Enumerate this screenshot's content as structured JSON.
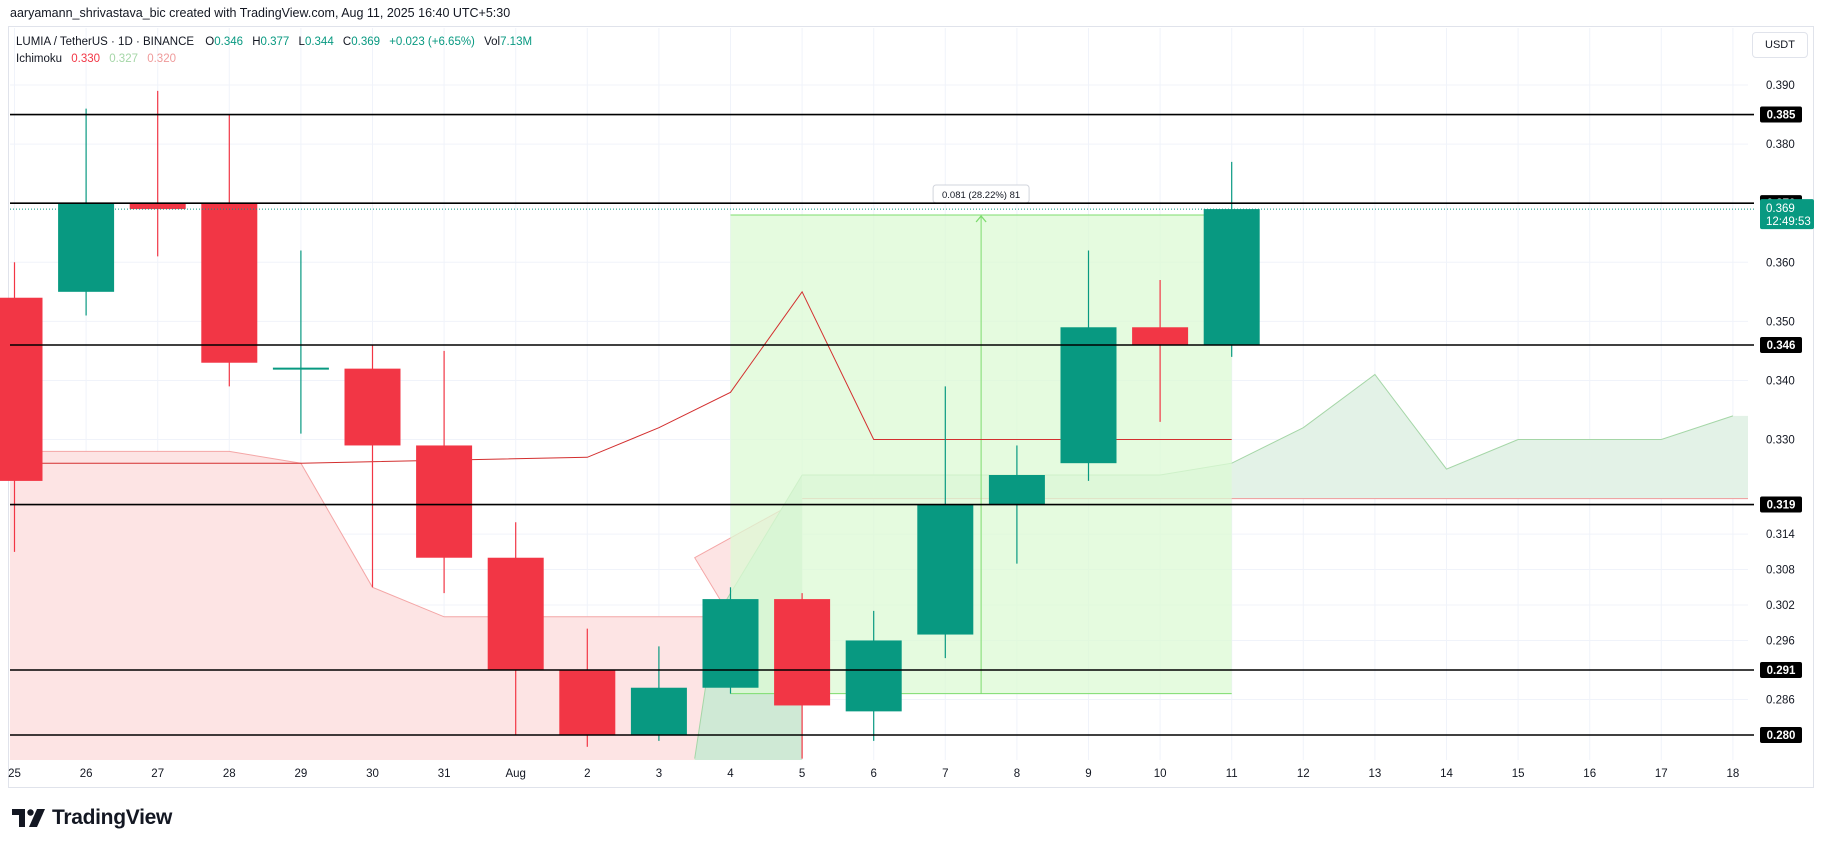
{
  "header": {
    "credit": "aaryamann_shrivastava_bic created with TradingView.com, Aug 11, 2025 16:40 UTC+5:30"
  },
  "legend": {
    "symbol": "LUMIA / TetherUS · 1D · BINANCE",
    "open_label": "O",
    "open": "0.346",
    "high_label": "H",
    "high": "0.377",
    "low_label": "L",
    "low": "0.344",
    "close_label": "C",
    "close": "0.369",
    "change": "+0.023 (+6.65%)",
    "vol_label": "Vol",
    "vol": "7.13M",
    "indicator_name": "Ichimoku",
    "indicator_values": [
      "0.330",
      "0.327",
      "0.320"
    ]
  },
  "currency": "USDT",
  "brand": {
    "name": "TradingView"
  },
  "colors": {
    "up": "#089981",
    "down": "#f23645",
    "level_line": "#000000",
    "measure_fill": "#dcfad4",
    "measure_stroke": "#7ddc6e",
    "cloud_red": "#fde4e4",
    "cloud_green": "#e3f2e7",
    "baseline": "#e57373"
  },
  "chart_data": {
    "type": "candlestick",
    "symbol": "LUMIA / TetherUS",
    "interval": "1D",
    "exchange": "BINANCE",
    "currency": "USDT",
    "x_labels": [
      "25",
      "26",
      "27",
      "28",
      "29",
      "30",
      "31",
      "Aug",
      "2",
      "3",
      "4",
      "5",
      "6",
      "7",
      "8",
      "9",
      "10",
      "11",
      "12",
      "13",
      "14",
      "15",
      "16",
      "17",
      "18"
    ],
    "y_ticks": [
      "0.390",
      "0.380",
      "0.370",
      "0.360",
      "0.350",
      "0.340",
      "0.330",
      "0.314",
      "0.308",
      "0.302",
      "0.296",
      "0.286"
    ],
    "candles": [
      {
        "d": "25",
        "o": 0.354,
        "h": 0.36,
        "l": 0.311,
        "c": 0.323
      },
      {
        "d": "26",
        "o": 0.355,
        "h": 0.386,
        "l": 0.351,
        "c": 0.37
      },
      {
        "d": "27",
        "o": 0.37,
        "h": 0.389,
        "l": 0.361,
        "c": 0.369
      },
      {
        "d": "28",
        "o": 0.37,
        "h": 0.385,
        "l": 0.339,
        "c": 0.343
      },
      {
        "d": "29",
        "o": 0.342,
        "h": 0.362,
        "l": 0.331,
        "c": 0.342
      },
      {
        "d": "30",
        "o": 0.342,
        "h": 0.346,
        "l": 0.305,
        "c": 0.329
      },
      {
        "d": "31",
        "o": 0.329,
        "h": 0.345,
        "l": 0.304,
        "c": 0.31
      },
      {
        "d": "Aug",
        "o": 0.31,
        "h": 0.316,
        "l": 0.28,
        "c": 0.291
      },
      {
        "d": "2",
        "o": 0.291,
        "h": 0.298,
        "l": 0.278,
        "c": 0.28
      },
      {
        "d": "3",
        "o": 0.28,
        "h": 0.295,
        "l": 0.279,
        "c": 0.288
      },
      {
        "d": "4",
        "o": 0.288,
        "h": 0.305,
        "l": 0.287,
        "c": 0.303
      },
      {
        "d": "5",
        "o": 0.303,
        "h": 0.304,
        "l": 0.276,
        "c": 0.285
      },
      {
        "d": "6",
        "o": 0.284,
        "h": 0.301,
        "l": 0.279,
        "c": 0.296
      },
      {
        "d": "7",
        "o": 0.297,
        "h": 0.339,
        "l": 0.293,
        "c": 0.319
      },
      {
        "d": "8",
        "o": 0.319,
        "h": 0.329,
        "l": 0.309,
        "c": 0.324
      },
      {
        "d": "9",
        "o": 0.326,
        "h": 0.362,
        "l": 0.323,
        "c": 0.349
      },
      {
        "d": "10",
        "o": 0.349,
        "h": 0.357,
        "l": 0.333,
        "c": 0.346
      },
      {
        "d": "11",
        "o": 0.346,
        "h": 0.377,
        "l": 0.344,
        "c": 0.369
      }
    ],
    "horizontal_levels": [
      "0.385",
      "0.370",
      "0.346",
      "0.319",
      "0.291",
      "0.280"
    ],
    "last_price": {
      "value": "0.369",
      "countdown": "12:49:53"
    },
    "measurement": {
      "label": "0.081 (28.22%) 81",
      "from_day": "4",
      "to_day": "11",
      "low": 0.287,
      "high": 0.368
    },
    "ichimoku": {
      "baseline": [
        {
          "d": "25",
          "v": 0.326
        },
        {
          "d": "29",
          "v": 0.326
        },
        {
          "d": "2",
          "v": 0.327
        },
        {
          "d": "3",
          "v": 0.332
        },
        {
          "d": "4",
          "v": 0.338
        },
        {
          "d": "5",
          "v": 0.355
        },
        {
          "d": "6",
          "v": 0.33
        },
        {
          "d": "11",
          "v": 0.33
        }
      ],
      "cloud_red_top": [
        {
          "d": "25",
          "v": 0.328
        },
        {
          "d": "28",
          "v": 0.328
        },
        {
          "d": "29",
          "v": 0.326
        },
        {
          "d": "30",
          "v": 0.305
        },
        {
          "d": "31",
          "v": 0.3
        },
        {
          "d": "4",
          "v": 0.3
        },
        {
          "d": "4.5",
          "v": 0.31
        },
        {
          "d": "5",
          "v": 0.32
        }
      ],
      "cloud_green": [
        {
          "d": "5",
          "v": 0.324
        },
        {
          "d": "9",
          "v": 0.324
        },
        {
          "d": "10",
          "v": 0.324
        },
        {
          "d": "11",
          "v": 0.326
        },
        {
          "d": "12",
          "v": 0.332
        },
        {
          "d": "13",
          "v": 0.341
        },
        {
          "d": "14",
          "v": 0.325
        },
        {
          "d": "15",
          "v": 0.33
        },
        {
          "d": "16",
          "v": 0.33
        },
        {
          "d": "17",
          "v": 0.33
        },
        {
          "d": "18",
          "v": 0.334
        }
      ],
      "cloud_floor": 0.32,
      "lagging_green": [
        {
          "d": "4.5",
          "v": 0.276
        },
        {
          "d": "4.8",
          "v": 0.3
        },
        {
          "d": "5",
          "v": 0.324
        }
      ]
    }
  }
}
